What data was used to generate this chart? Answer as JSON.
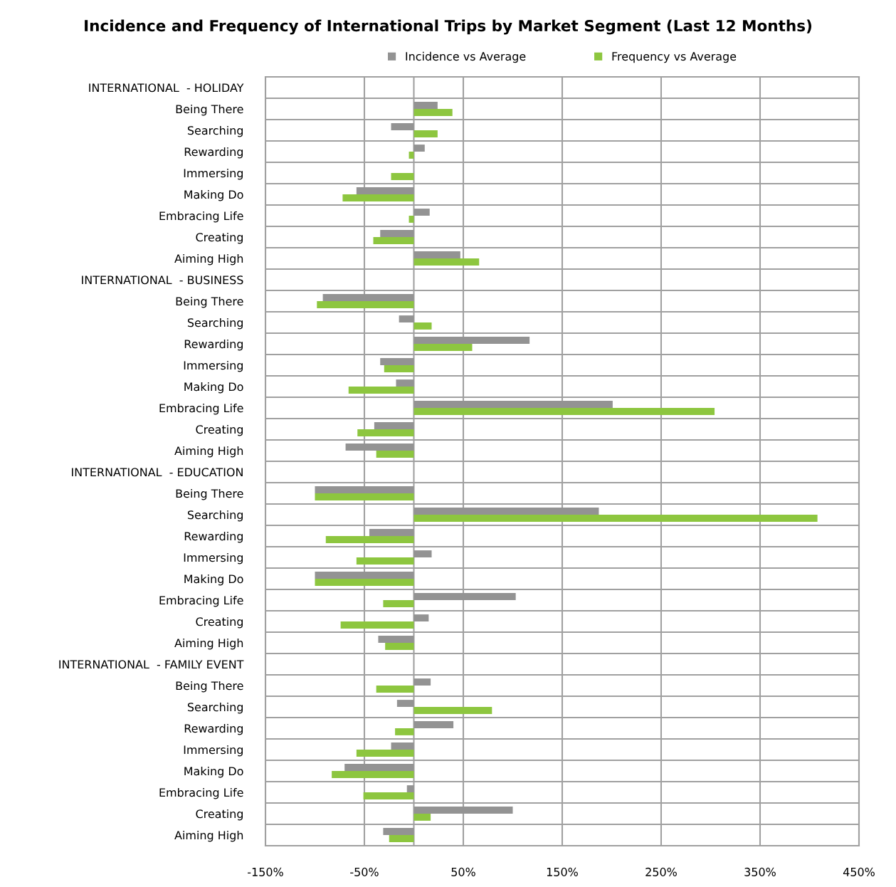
{
  "chart_data": {
    "type": "bar",
    "orientation": "horizontal",
    "title": "Incidence and Frequency of International Trips by Market Segment (Last 12 Months)",
    "categories": [
      "INTERNATIONAL  - HOLIDAY",
      "Being There",
      "Searching",
      "Rewarding",
      "Immersing",
      "Making Do",
      "Embracing Life",
      "Creating",
      "Aiming High",
      "INTERNATIONAL  - BUSINESS",
      "Being There",
      "Searching",
      "Rewarding",
      "Immersing",
      "Making Do",
      "Embracing Life",
      "Creating",
      "Aiming High",
      "INTERNATIONAL  - EDUCATION",
      "Being There",
      "Searching",
      "Rewarding",
      "Immersing",
      "Making Do",
      "Embracing Life",
      "Creating",
      "Aiming High",
      "INTERNATIONAL  - FAMILY EVENT",
      "Being There",
      "Searching",
      "Rewarding",
      "Immersing",
      "Making Do",
      "Embracing Life",
      "Creating",
      "Aiming High"
    ],
    "series": [
      {
        "name": "Incidence vs Average",
        "color": "#939393",
        "values": [
          null,
          24,
          -23,
          11,
          0,
          -58,
          16,
          -34,
          47,
          null,
          -92,
          -15,
          117,
          -34,
          -18,
          201,
          -40,
          -69,
          null,
          -100,
          187,
          -45,
          18,
          -100,
          103,
          15,
          -36,
          null,
          17,
          -17,
          40,
          -23,
          -70,
          -7,
          100,
          -31
        ]
      },
      {
        "name": "Frequency vs Average",
        "color": "#8dc63f",
        "values": [
          null,
          39,
          24,
          -5,
          -23,
          -72,
          -5,
          -41,
          66,
          null,
          -98,
          18,
          59,
          -30,
          -66,
          304,
          -57,
          -38,
          null,
          -100,
          408,
          -89,
          -58,
          -100,
          -31,
          -74,
          -29,
          null,
          -38,
          79,
          -19,
          -58,
          -83,
          -51,
          17,
          -25
        ]
      }
    ],
    "xlim": [
      -150,
      450
    ],
    "xticks": [
      {
        "value": -150,
        "label": "-150%"
      },
      {
        "value": -50,
        "label": "-50%"
      },
      {
        "value": 50,
        "label": "50%"
      },
      {
        "value": 150,
        "label": "150%"
      },
      {
        "value": 250,
        "label": "250%"
      },
      {
        "value": 350,
        "label": "350%"
      },
      {
        "value": 450,
        "label": "450%"
      }
    ],
    "grid": true,
    "legend": "top"
  }
}
